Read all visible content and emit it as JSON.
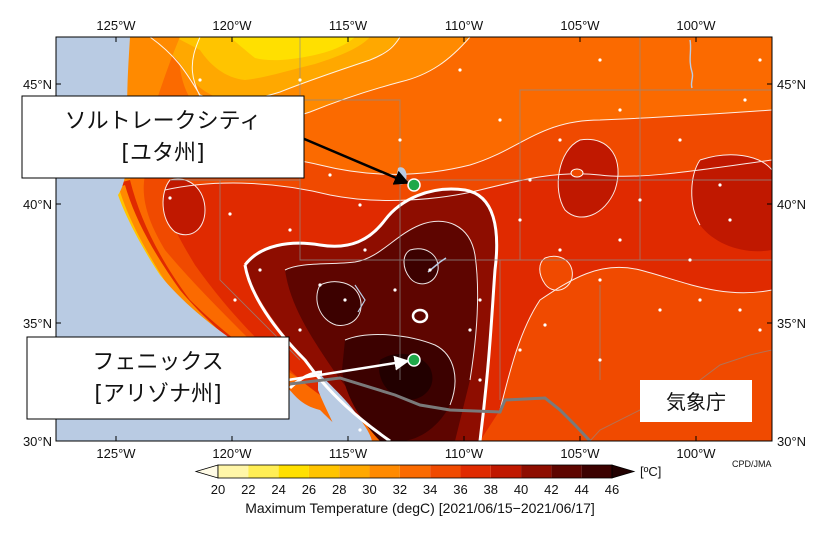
{
  "map": {
    "lon_labels": [
      "125°W",
      "120°W",
      "115°W",
      "110°W",
      "105°W",
      "100°W"
    ],
    "lat_labels": [
      "45°N",
      "40°N",
      "35°N",
      "30°N"
    ],
    "credit": "CPD/JMA",
    "agency": "気象庁"
  },
  "callouts": [
    {
      "line1": "ソルトレークシティ",
      "line2": "[ユタ州]"
    },
    {
      "line1": "フェニックス",
      "line2": "[アリゾナ州]"
    }
  ],
  "colorbar": {
    "ticks": [
      "20",
      "22",
      "24",
      "26",
      "28",
      "30",
      "32",
      "34",
      "36",
      "38",
      "40",
      "42",
      "44",
      "46"
    ],
    "unit": "[ºC]",
    "colors": [
      "#fffbe6",
      "#fff6a8",
      "#ffee55",
      "#ffe000",
      "#ffc400",
      "#ffa800",
      "#ff8a00",
      "#fb6a00",
      "#f04a00",
      "#e02a00",
      "#c01800",
      "#8e0d00",
      "#5e0500",
      "#3c0100",
      "#220000"
    ],
    "caption": "Maximum Temperature (degC) [2021/06/15−2021/06/17]"
  },
  "colors": {
    "ocean": "#b9cbe3",
    "border": "#7a7a7a",
    "marker": "#1fa84a"
  }
}
